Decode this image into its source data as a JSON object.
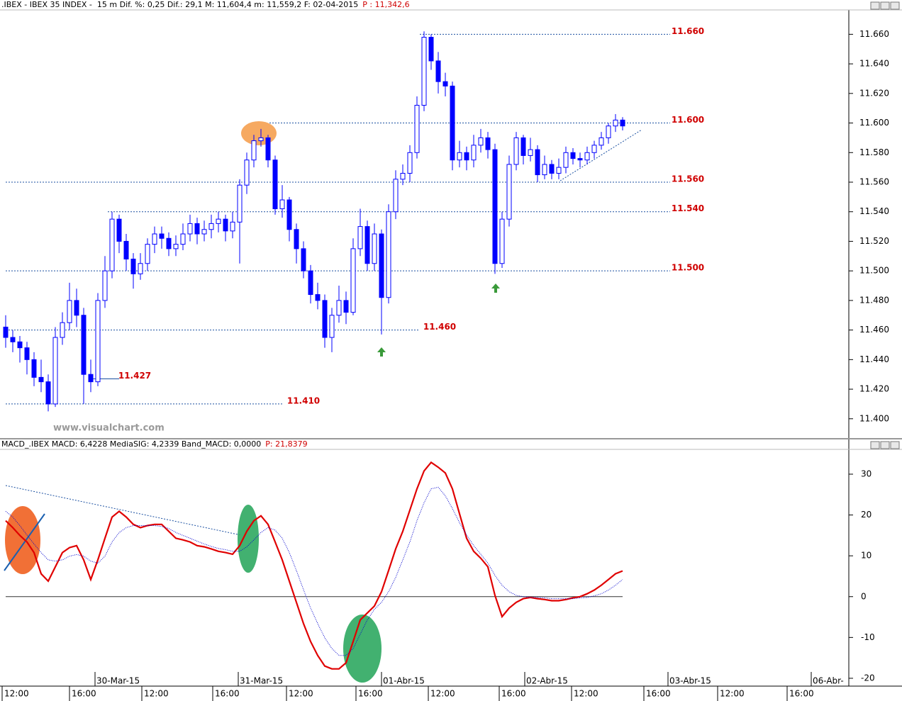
{
  "chart_data": [
    {
      "type": "candlestick",
      "title": ".IBEX - IBEX 35 INDEX -  15 m Dif. %: 0,25 Dif.: 29,1 M: 11,604,4 m: 11,559,2 F: 02-04-2015",
      "title_p": "P : 11,342,6",
      "watermark": "www.visualchart.com",
      "color": "#0000ff",
      "xlim": [
        -0.8,
        118.9
      ],
      "ylim": [
        11386,
        11676
      ],
      "yticks": [
        {
          "value": 11400,
          "label": "11.400"
        },
        {
          "value": 11420,
          "label": "11.420"
        },
        {
          "value": 11440,
          "label": "11.440"
        },
        {
          "value": 11460,
          "label": "11.460"
        },
        {
          "value": 11480,
          "label": "11.480"
        },
        {
          "value": 11500,
          "label": "11.500"
        },
        {
          "value": 11520,
          "label": "11.520"
        },
        {
          "value": 11540,
          "label": "11.540"
        },
        {
          "value": 11560,
          "label": "11.560"
        },
        {
          "value": 11580,
          "label": "11.580"
        },
        {
          "value": 11600,
          "label": "11.600"
        },
        {
          "value": 11620,
          "label": "11.620"
        },
        {
          "value": 11640,
          "label": "11.640"
        },
        {
          "value": 11660,
          "label": "11.660"
        }
      ],
      "levels": [
        {
          "value": 11660,
          "label": "11.660"
        },
        {
          "value": 11600,
          "label": "11.600"
        },
        {
          "value": 11560,
          "label": "11.560"
        },
        {
          "value": 11540,
          "label": "11.540"
        },
        {
          "value": 11500,
          "label": "11.500"
        },
        {
          "value": 11460,
          "label": "11.460"
        },
        {
          "value": 11427,
          "label": "11.427"
        },
        {
          "value": 11410,
          "label": "11.410"
        }
      ],
      "ohlc": [
        [
          11462,
          11470,
          11448,
          11455
        ],
        [
          11455,
          11460,
          11445,
          11452
        ],
        [
          11452,
          11456,
          11438,
          11448
        ],
        [
          11448,
          11452,
          11430,
          11440
        ],
        [
          11440,
          11445,
          11422,
          11428
        ],
        [
          11428,
          11440,
          11418,
          11425
        ],
        [
          11425,
          11430,
          11405,
          11410
        ],
        [
          11410,
          11462,
          11408,
          11455
        ],
        [
          11455,
          11472,
          11450,
          11465
        ],
        [
          11465,
          11492,
          11460,
          11480
        ],
        [
          11480,
          11488,
          11462,
          11470
        ],
        [
          11470,
          11475,
          11410,
          11430
        ],
        [
          11430,
          11440,
          11418,
          11425
        ],
        [
          11425,
          11485,
          11422,
          11480
        ],
        [
          11480,
          11510,
          11475,
          11500
        ],
        [
          11500,
          11540,
          11495,
          11535
        ],
        [
          11535,
          11538,
          11512,
          11520
        ],
        [
          11520,
          11525,
          11500,
          11508
        ],
        [
          11508,
          11512,
          11488,
          11498
        ],
        [
          11498,
          11512,
          11494,
          11505
        ],
        [
          11505,
          11522,
          11500,
          11518
        ],
        [
          11518,
          11530,
          11512,
          11525
        ],
        [
          11525,
          11530,
          11515,
          11522
        ],
        [
          11522,
          11526,
          11510,
          11515
        ],
        [
          11515,
          11524,
          11510,
          11518
        ],
        [
          11518,
          11532,
          11514,
          11525
        ],
        [
          11525,
          11538,
          11520,
          11532
        ],
        [
          11532,
          11536,
          11518,
          11525
        ],
        [
          11525,
          11534,
          11520,
          11528
        ],
        [
          11528,
          11538,
          11522,
          11532
        ],
        [
          11532,
          11540,
          11526,
          11535
        ],
        [
          11535,
          11538,
          11520,
          11527
        ],
        [
          11527,
          11540,
          11522,
          11533
        ],
        [
          11533,
          11562,
          11505,
          11558
        ],
        [
          11558,
          11580,
          11552,
          11575
        ],
        [
          11575,
          11592,
          11570,
          11588
        ],
        [
          11588,
          11596,
          11584,
          11590
        ],
        [
          11590,
          11592,
          11570,
          11575
        ],
        [
          11575,
          11578,
          11538,
          11542
        ],
        [
          11542,
          11558,
          11536,
          11548
        ],
        [
          11548,
          11550,
          11520,
          11528
        ],
        [
          11528,
          11532,
          11505,
          11515
        ],
        [
          11515,
          11520,
          11495,
          11500
        ],
        [
          11500,
          11504,
          11478,
          11484
        ],
        [
          11484,
          11492,
          11474,
          11480
        ],
        [
          11480,
          11484,
          11448,
          11455
        ],
        [
          11455,
          11475,
          11445,
          11470
        ],
        [
          11470,
          11490,
          11465,
          11480
        ],
        [
          11480,
          11486,
          11464,
          11472
        ],
        [
          11472,
          11522,
          11470,
          11515
        ],
        [
          11515,
          11542,
          11510,
          11530
        ],
        [
          11530,
          11534,
          11500,
          11505
        ],
        [
          11505,
          11532,
          11500,
          11525
        ],
        [
          11525,
          11528,
          11457,
          11482
        ],
        [
          11482,
          11545,
          11478,
          11540
        ],
        [
          11540,
          11568,
          11535,
          11562
        ],
        [
          11562,
          11572,
          11558,
          11566
        ],
        [
          11566,
          11585,
          11560,
          11580
        ],
        [
          11580,
          11618,
          11576,
          11612
        ],
        [
          11612,
          11662,
          11608,
          11658
        ],
        [
          11658,
          11660,
          11636,
          11642
        ],
        [
          11642,
          11648,
          11620,
          11628
        ],
        [
          11628,
          11634,
          11618,
          11625
        ],
        [
          11625,
          11628,
          11568,
          11575
        ],
        [
          11575,
          11588,
          11570,
          11580
        ],
        [
          11580,
          11584,
          11568,
          11575
        ],
        [
          11575,
          11592,
          11570,
          11585
        ],
        [
          11585,
          11596,
          11580,
          11590
        ],
        [
          11590,
          11594,
          11576,
          11582
        ],
        [
          11582,
          11586,
          11498,
          11505
        ],
        [
          11505,
          11540,
          11502,
          11535
        ],
        [
          11535,
          11578,
          11530,
          11572
        ],
        [
          11572,
          11594,
          11568,
          11590
        ],
        [
          11590,
          11592,
          11572,
          11578
        ],
        [
          11578,
          11590,
          11574,
          11582
        ],
        [
          11582,
          11585,
          11560,
          11565
        ],
        [
          11565,
          11578,
          11562,
          11572
        ],
        [
          11572,
          11575,
          11562,
          11566
        ],
        [
          11566,
          11576,
          11562,
          11570
        ],
        [
          11570,
          11584,
          11566,
          11580
        ],
        [
          11580,
          11583,
          11572,
          11576
        ],
        [
          11576,
          11580,
          11570,
          11575
        ],
        [
          11575,
          11584,
          11572,
          11580
        ],
        [
          11580,
          11588,
          11576,
          11585
        ],
        [
          11585,
          11594,
          11582,
          11590
        ],
        [
          11590,
          11600,
          11586,
          11598
        ],
        [
          11598,
          11606,
          11594,
          11602
        ],
        [
          11602,
          11604,
          11595,
          11598
        ]
      ]
    },
    {
      "type": "line",
      "title": "MACD_.IBEX MACD: 6,4228 MediaSIG: 4,2339 Band_MACD: 0,0000",
      "title_p": "P: 21,8379",
      "xlim": [
        -0.8,
        118.9
      ],
      "ylim": [
        -21.4,
        35.9
      ],
      "yticks": [
        30,
        20,
        10,
        0,
        -10,
        -20
      ],
      "xticks": [
        {
          "value": -0.5,
          "label": "12:00"
        },
        {
          "value": 9,
          "label": "16:00"
        },
        {
          "value": 19.2,
          "label": "12:00"
        },
        {
          "value": 29.2,
          "label": "16:00"
        },
        {
          "value": 39.6,
          "label": "12:00"
        },
        {
          "value": 49.4,
          "label": "16:00"
        },
        {
          "value": 59.6,
          "label": "12:00"
        },
        {
          "value": 69.6,
          "label": "16:00"
        },
        {
          "value": 79.8,
          "label": "12:00"
        },
        {
          "value": 90,
          "label": "16:00"
        },
        {
          "value": 100.4,
          "label": "12:00"
        },
        {
          "value": 110.2,
          "label": "16:00"
        }
      ],
      "date_ticks": [
        {
          "value": 12.6,
          "label": "30-Mar-15"
        },
        {
          "value": 32.8,
          "label": "31-Mar-15"
        },
        {
          "value": 53,
          "label": "01-Abr-15"
        },
        {
          "value": 73.2,
          "label": "02-Abr-15"
        },
        {
          "value": 93.4,
          "label": "03-Abr-15"
        },
        {
          "value": 113.6,
          "label": "06-Abr-"
        }
      ],
      "series": [
        {
          "color": "#e00000",
          "style": "solid",
          "values": [
            18.6,
            16.9,
            15,
            13.4,
            10.8,
            5.6,
            3.8,
            7.3,
            10.8,
            12,
            12.5,
            9,
            4.2,
            9,
            14.3,
            19.5,
            20.9,
            19.5,
            17.7,
            16.9,
            17.4,
            17.7,
            17.7,
            16,
            14.3,
            13.9,
            13.4,
            12.5,
            12.2,
            11.7,
            11.1,
            10.8,
            10.4,
            12.5,
            16,
            18.6,
            19.8,
            17.7,
            13.4,
            9,
            3.8,
            -1.4,
            -6.6,
            -11,
            -14.4,
            -17,
            -17.7,
            -17.7,
            -16.2,
            -11,
            -5.7,
            -4,
            -2.3,
            1.2,
            6.4,
            11.7,
            16,
            21.2,
            26.4,
            30.8,
            32.9,
            31.7,
            30.3,
            26.4,
            20.3,
            14.3,
            11.1,
            9.4,
            7.3,
            0.3,
            -4.9,
            -2.8,
            -1.4,
            -0.5,
            -0.2,
            -0.5,
            -0.7,
            -1,
            -1,
            -0.7,
            -0.3,
            0,
            0.7,
            1.6,
            2.8,
            4.2,
            5.6,
            6.3
          ]
        },
        {
          "color": "#0000cc",
          "style": "dotted",
          "values": [
            20.9,
            19.5,
            17.4,
            15.1,
            12.9,
            10.8,
            9,
            8.7,
            9,
            9.9,
            10.3,
            9.9,
            8.7,
            8.2,
            9.9,
            13.4,
            15.7,
            16.9,
            17.4,
            17.4,
            17.4,
            17.4,
            17.2,
            16.7,
            15.7,
            15,
            14.3,
            13.6,
            12.9,
            12.3,
            11.8,
            11.5,
            11.1,
            11.1,
            12.2,
            13.9,
            15.7,
            16.9,
            16.3,
            14.3,
            10.8,
            6.4,
            1.7,
            -2.8,
            -6.6,
            -10.1,
            -12.7,
            -14.4,
            -14.4,
            -12.7,
            -9.2,
            -5.7,
            -3.1,
            -1.4,
            1.2,
            4.7,
            9,
            13.4,
            18.6,
            23,
            26.4,
            26.8,
            24.7,
            21.6,
            18.1,
            15.1,
            12.5,
            10.4,
            8.2,
            5.2,
            2.8,
            1.2,
            0.3,
            0,
            -0.2,
            -0.2,
            -0.3,
            -0.5,
            -0.5,
            -0.5,
            -0.5,
            -0.3,
            -0.2,
            0.2,
            0.7,
            1.6,
            2.8,
            4.2
          ]
        }
      ]
    }
  ]
}
